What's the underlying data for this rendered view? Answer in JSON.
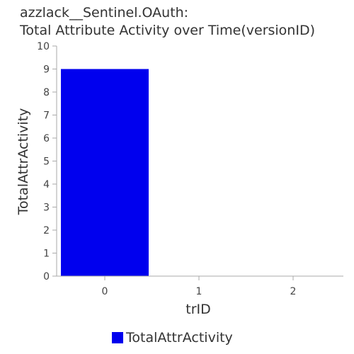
{
  "chart_data": {
    "type": "bar",
    "title_lines": [
      "azzlack__Sentinel.OAuth:",
      "Total Attribute Activity over Time(versionID)"
    ],
    "xlabel": "trID",
    "ylabel": "TotalAttrActivity",
    "categories": [
      "0",
      "1",
      "2"
    ],
    "series": [
      {
        "name": "TotalAttrActivity",
        "values": [
          9,
          0,
          0
        ],
        "color": "#0000ee"
      }
    ],
    "ylim": [
      0,
      10
    ],
    "yticks": [
      0,
      1,
      2,
      3,
      4,
      5,
      6,
      7,
      8,
      9,
      10
    ],
    "grid": false,
    "legend_position": "bottom-center"
  }
}
